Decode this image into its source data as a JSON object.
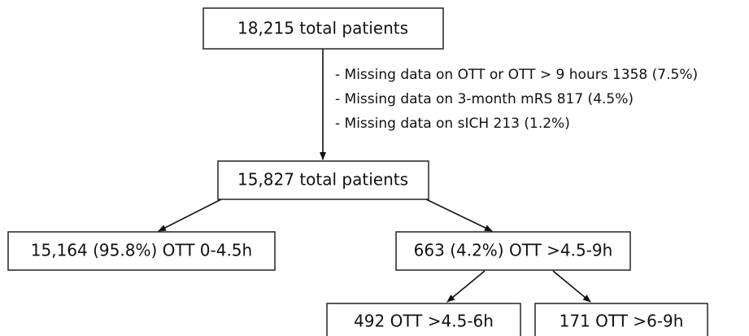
{
  "nodes": [
    {
      "label": "18,215 total patients"
    },
    {
      "label": "15,827 total patients"
    },
    {
      "label": "15,164 (95.8%) OTT 0-4.5h"
    },
    {
      "label": "663 (4.2%) OTT >4.5-9h"
    },
    {
      "label": "492 OTT >4.5-6h"
    },
    {
      "label": "171 OTT >6-9h"
    }
  ],
  "exclusions": [
    "- Missing data on OTT or OTT > 9 hours 1358 (7.5%)",
    "- Missing data on 3-month mRS 817 (4.5%)",
    "- Missing data on sICH 213 (1.2%)"
  ]
}
